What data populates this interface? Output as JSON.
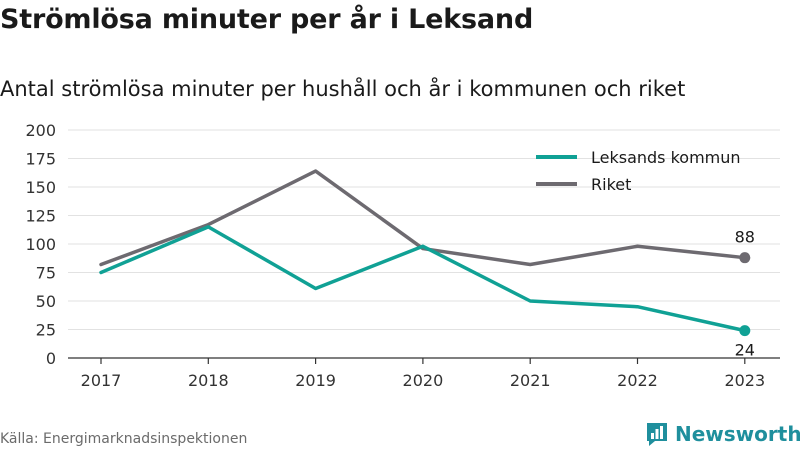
{
  "title": "Strömlösa minuter per år i Leksand",
  "subtitle": "Antal strömlösa minuter per hushåll och år i kommunen och riket",
  "source": "Källa: Energimarknadsinspektionen",
  "brand": {
    "name": "Newsworthy",
    "icon": "bar-chart-logo-icon",
    "color": "#1f8f9d"
  },
  "chart_data": {
    "type": "line",
    "x": [
      "2017",
      "2018",
      "2019",
      "2020",
      "2021",
      "2022",
      "2023"
    ],
    "ylim": [
      0,
      200
    ],
    "yticks": [
      0,
      25,
      50,
      75,
      100,
      125,
      150,
      175,
      200
    ],
    "grid": true,
    "legend_position": "top-right",
    "series": [
      {
        "name": "Leksands kommun",
        "color": "#10a195",
        "values": [
          75,
          115,
          61,
          98,
          50,
          45,
          24
        ],
        "end_label": "24"
      },
      {
        "name": "Riket",
        "color": "#6d6a70",
        "values": [
          82,
          117,
          164,
          96,
          82,
          98,
          88
        ],
        "end_label": "88"
      }
    ]
  }
}
